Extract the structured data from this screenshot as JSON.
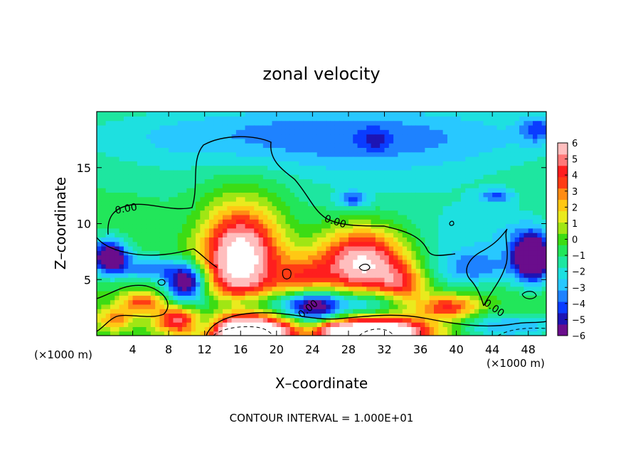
{
  "chart_data": {
    "type": "heatmap",
    "title": "zonal velocity",
    "xlabel": "X–coordinate",
    "ylabel": "Z–coordinate",
    "x_unit_left": "(×1000 m)",
    "x_unit_right": "(×1000 m)",
    "footer": "CONTOUR INTERVAL = 1.000E+01",
    "xlim": [
      0,
      50
    ],
    "ylim": [
      0,
      20
    ],
    "x_ticks": [
      4,
      8,
      12,
      16,
      20,
      24,
      28,
      32,
      36,
      40,
      44,
      48
    ],
    "y_ticks": [
      5,
      10,
      15
    ],
    "contour_labels": [
      "0.00",
      "0.00",
      "0.00",
      "0.00"
    ],
    "colorbar": {
      "ticks": [
        "6",
        "5",
        "4",
        "3",
        "2",
        "1",
        "0",
        "−1",
        "−2",
        "−3",
        "−4",
        "−5",
        "−6"
      ],
      "range": [
        -6,
        6
      ],
      "colors": [
        "#6a0d8c",
        "#1d14b4",
        "#0a3cff",
        "#1e82ff",
        "#28c8ff",
        "#1ee0e0",
        "#1ee6a0",
        "#22e65a",
        "#3cdc14",
        "#a0e614",
        "#eaea1e",
        "#ffc814",
        "#ff8c14",
        "#ff3c14",
        "#ff1e1e",
        "#ff7878",
        "#ffbebe"
      ]
    },
    "field_blobs": [
      {
        "x": 25,
        "z": 13,
        "rx": 30,
        "rz": 9,
        "v": -2.0
      },
      {
        "x": 26,
        "z": 18,
        "rx": 30,
        "rz": 3,
        "v": -2.4
      },
      {
        "x": 5,
        "z": 10,
        "rx": 4,
        "rz": 3,
        "v": 0.4
      },
      {
        "x": 17,
        "z": 14,
        "rx": 8,
        "rz": 4,
        "v": 0.6
      },
      {
        "x": 22,
        "z": 11,
        "rx": 10,
        "rz": 4,
        "v": 0.4
      },
      {
        "x": 32,
        "z": 9,
        "rx": 8,
        "rz": 3,
        "v": 0.5
      },
      {
        "x": 38,
        "z": 8,
        "rx": 5,
        "rz": 3,
        "v": -0.8
      },
      {
        "x": 45,
        "z": 9,
        "rx": 5,
        "rz": 3,
        "v": -1.2
      },
      {
        "x": 16,
        "z": 7,
        "rx": 4.5,
        "rz": 4.5,
        "v": 8.5
      },
      {
        "x": 29.5,
        "z": 6.5,
        "rx": 5,
        "rz": 3,
        "v": 7.5
      },
      {
        "x": 23,
        "z": 5,
        "rx": 3,
        "rz": 2,
        "v": 3.5
      },
      {
        "x": 34,
        "z": 4.5,
        "rx": 2.5,
        "rz": 1.8,
        "v": 3.5
      },
      {
        "x": 39,
        "z": 2.6,
        "rx": 3.5,
        "rz": 1.1,
        "v": 4.5
      },
      {
        "x": 31,
        "z": 17.5,
        "rx": 1.5,
        "rz": 1,
        "v": -1.5
      },
      {
        "x": 28.5,
        "z": 12.2,
        "rx": 1.6,
        "rz": 0.7,
        "v": -3
      },
      {
        "x": 44.5,
        "z": 12.5,
        "rx": 1.8,
        "rz": 0.6,
        "v": -2.5
      },
      {
        "x": 49,
        "z": 18.5,
        "rx": 2,
        "rz": 1.2,
        "v": -2.5
      },
      {
        "x": 1.5,
        "z": 7,
        "rx": 2,
        "rz": 1.5,
        "v": -7
      },
      {
        "x": 10,
        "z": 4.8,
        "rx": 2.2,
        "rz": 1.6,
        "v": -6.5
      },
      {
        "x": 6,
        "z": 6,
        "rx": 3,
        "rz": 1,
        "v": -3
      },
      {
        "x": 48.5,
        "z": 7,
        "rx": 2.2,
        "rz": 2.2,
        "v": -7.5
      },
      {
        "x": 42,
        "z": 6,
        "rx": 4,
        "rz": 1.5,
        "v": -2.5
      },
      {
        "x": 18,
        "z": 3,
        "rx": 8,
        "rz": 1,
        "v": -2.5
      },
      {
        "x": 24,
        "z": 2.5,
        "rx": 3,
        "rz": 1.8,
        "v": -5
      },
      {
        "x": 30,
        "z": 3,
        "rx": 5,
        "rz": 1.2,
        "v": -3
      },
      {
        "x": 5,
        "z": 3,
        "rx": 2.5,
        "rz": 1,
        "v": 4
      },
      {
        "x": 9,
        "z": 1.5,
        "rx": 2.5,
        "rz": 1.2,
        "v": 5
      },
      {
        "x": 2,
        "z": 1.5,
        "rx": 2,
        "rz": 1,
        "v": 3
      },
      {
        "x": 17,
        "z": 0.4,
        "rx": 5,
        "rz": 1.2,
        "v": 10
      },
      {
        "x": 31,
        "z": 0.4,
        "rx": 6,
        "rz": 1.2,
        "v": 10
      },
      {
        "x": 26,
        "z": 0.6,
        "rx": 1.5,
        "rz": 0.8,
        "v": 2.5
      },
      {
        "x": 46,
        "z": 0.8,
        "rx": 6,
        "rz": 1.2,
        "v": -3
      },
      {
        "x": 12,
        "z": 1,
        "rx": 2,
        "rz": 1.2,
        "v": -3
      }
    ]
  }
}
